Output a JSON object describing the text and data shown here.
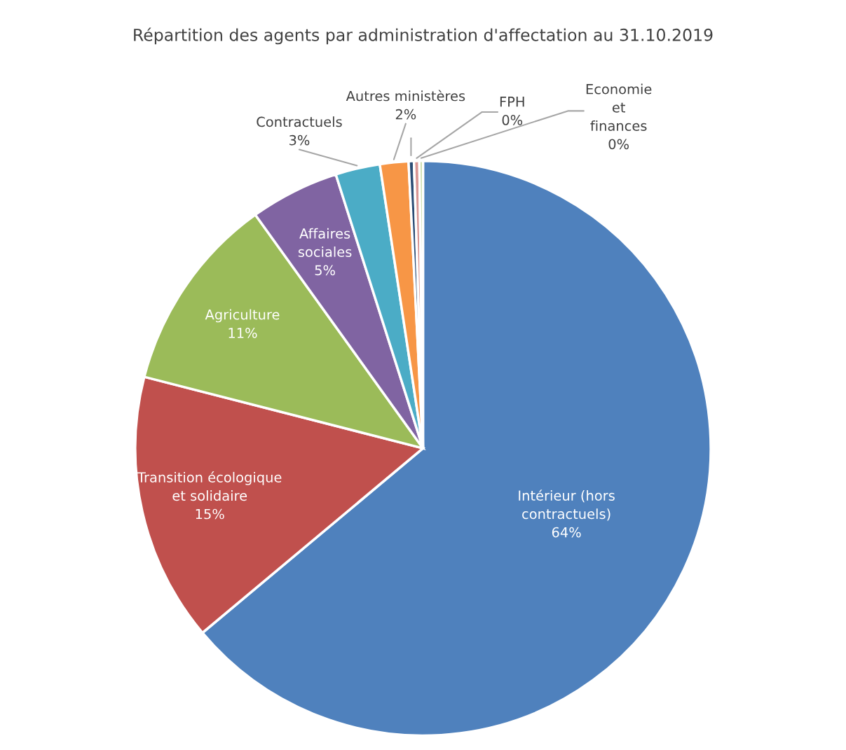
{
  "chart_data": {
    "type": "pie",
    "title": "Répartition des agents par administration d'affectation au 31.10.2019",
    "categories": [
      "Intérieur (hors\ncontractuels)",
      "Transition écologique\net solidaire",
      "Agriculture",
      "Affaires\nsociales",
      "Contractuels",
      "Autres ministères",
      null,
      "FPH",
      "Economie\net\nfinances"
    ],
    "values": [
      63.9,
      15.1,
      11.1,
      5,
      2.5,
      1.6,
      0.3,
      0.3,
      0.2
    ],
    "value_labels": [
      "64%",
      "15%",
      "11%",
      "5%",
      "3%",
      "2%",
      null,
      "0%",
      "0%"
    ],
    "colors": [
      "#4f81bd",
      "#c0504d",
      "#9bbb59",
      "#8064a2",
      "#4bacc6",
      "#f79646",
      "#2c4d75",
      "#d99694",
      "#c3d69b"
    ]
  }
}
